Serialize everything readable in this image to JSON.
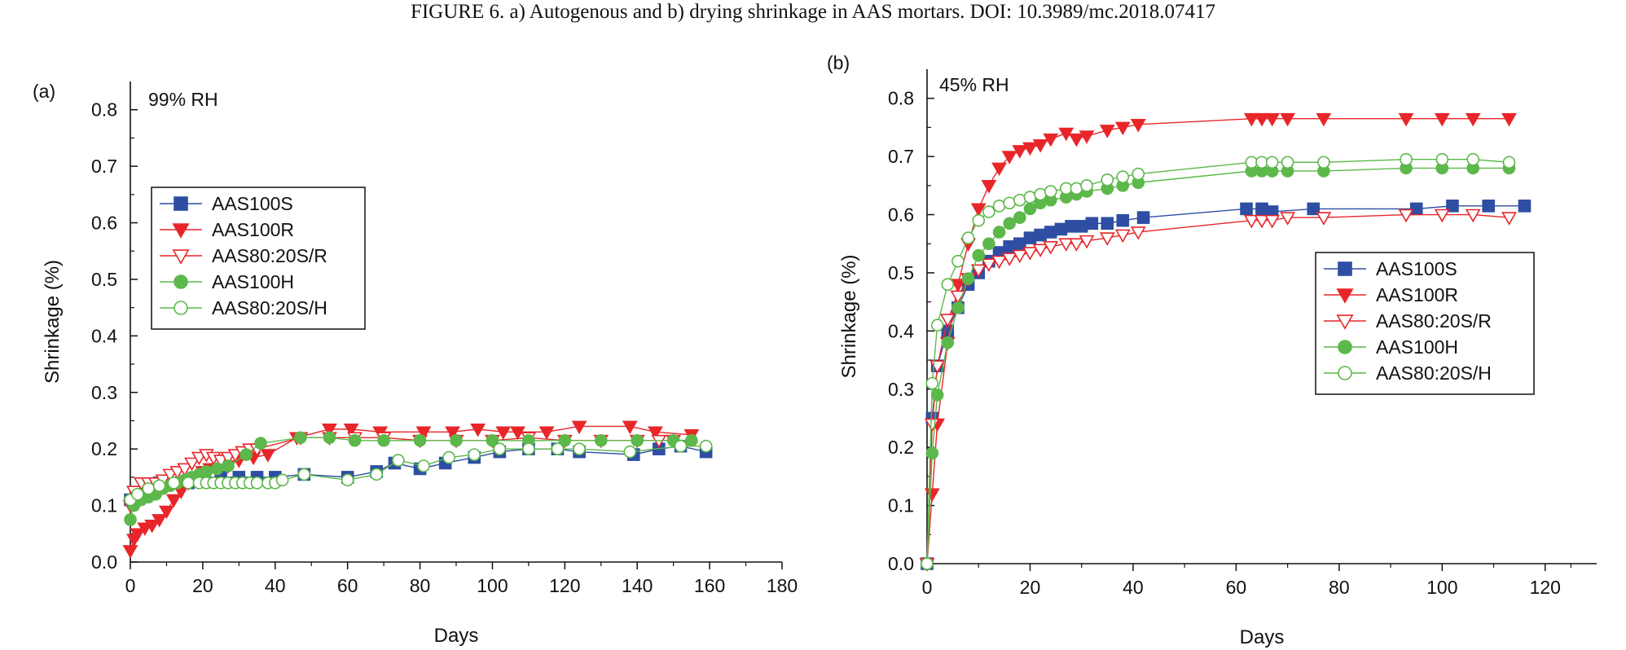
{
  "figure": {
    "caption": "FIGURE 6. a) Autogenous and b) drying shrinkage in AAS mortars. DOI: 10.3989/mc.2018.07417"
  },
  "colors": {
    "AAS100S": "#2e4ea3",
    "AAS100R": "#e8262a",
    "AAS80:20S/R": "#e8262a",
    "AAS100H": "#5cb84a",
    "AAS80:20S/H": "#5cb84a"
  },
  "chart_data": [
    {
      "type": "line",
      "panel_label": "(a)",
      "annotation": "99% RH",
      "xlabel": "Days",
      "ylabel": "Shrinkage (%)",
      "xlim": [
        0,
        180
      ],
      "ylim": [
        0,
        0.85
      ],
      "xticks": [
        "0",
        "20",
        "40",
        "60",
        "80",
        "100",
        "120",
        "140",
        "160",
        "180"
      ],
      "yticks": [
        "0.0",
        "0.1",
        "0.2",
        "0.3",
        "0.4",
        "0.5",
        "0.6",
        "0.7",
        "0.8"
      ],
      "legend_position": "upper-left",
      "series": [
        {
          "name": "AAS100S",
          "marker": "square",
          "filled": true,
          "x": [
            0,
            2,
            5,
            8,
            12,
            16,
            20,
            25,
            30,
            35,
            40,
            48,
            60,
            68,
            73,
            80,
            87,
            95,
            102,
            110,
            118,
            124,
            139,
            146,
            152,
            159
          ],
          "y": [
            0.11,
            0.12,
            0.13,
            0.14,
            0.14,
            0.14,
            0.15,
            0.15,
            0.15,
            0.15,
            0.15,
            0.155,
            0.15,
            0.16,
            0.175,
            0.165,
            0.175,
            0.185,
            0.195,
            0.2,
            0.2,
            0.195,
            0.19,
            0.2,
            0.205,
            0.195
          ]
        },
        {
          "name": "AAS100R",
          "marker": "triangle-down",
          "filled": true,
          "x": [
            0,
            1,
            2,
            4,
            6,
            8,
            10,
            12,
            14,
            16,
            18,
            20,
            22,
            24,
            27,
            30,
            34,
            38,
            46,
            55,
            61,
            69,
            81,
            89,
            96,
            103,
            107,
            115,
            124,
            138,
            145,
            155
          ],
          "y": [
            0.02,
            0.04,
            0.05,
            0.06,
            0.065,
            0.075,
            0.09,
            0.11,
            0.125,
            0.14,
            0.15,
            0.16,
            0.165,
            0.165,
            0.17,
            0.18,
            0.185,
            0.19,
            0.22,
            0.235,
            0.235,
            0.23,
            0.23,
            0.23,
            0.235,
            0.23,
            0.23,
            0.23,
            0.24,
            0.24,
            0.23,
            0.225
          ]
        },
        {
          "name": "AAS80:20S/R",
          "marker": "triangle-down",
          "filled": false,
          "x": [
            0,
            1,
            3,
            5,
            7,
            9,
            11,
            13,
            15,
            17,
            19,
            21,
            23,
            25,
            27,
            29,
            31,
            33,
            35,
            47,
            55,
            62,
            70,
            80,
            90,
            100,
            110,
            120,
            130,
            140,
            146,
            150
          ],
          "y": [
            0.1,
            0.125,
            0.14,
            0.14,
            0.14,
            0.145,
            0.155,
            0.16,
            0.165,
            0.175,
            0.185,
            0.19,
            0.185,
            0.18,
            0.185,
            0.19,
            0.195,
            0.2,
            0.2,
            0.22,
            0.22,
            0.22,
            0.22,
            0.215,
            0.215,
            0.215,
            0.22,
            0.215,
            0.215,
            0.215,
            0.215,
            0.215
          ]
        },
        {
          "name": "AAS100H",
          "marker": "circle",
          "filled": true,
          "x": [
            0,
            1,
            3,
            5,
            7,
            9,
            11,
            13,
            15,
            17,
            19,
            21,
            24,
            27,
            32,
            36,
            47,
            55,
            62,
            70,
            80,
            90,
            100,
            110,
            120,
            130,
            140,
            150,
            155
          ],
          "y": [
            0.075,
            0.1,
            0.11,
            0.115,
            0.12,
            0.13,
            0.135,
            0.14,
            0.145,
            0.15,
            0.155,
            0.16,
            0.165,
            0.17,
            0.19,
            0.21,
            0.22,
            0.22,
            0.215,
            0.215,
            0.215,
            0.215,
            0.215,
            0.215,
            0.215,
            0.215,
            0.215,
            0.215,
            0.215
          ]
        },
        {
          "name": "AAS80:20S/H",
          "marker": "circle",
          "filled": false,
          "x": [
            0,
            2,
            5,
            8,
            12,
            16,
            19,
            21,
            23,
            25,
            27,
            29,
            31,
            33,
            35,
            38,
            40,
            42,
            48,
            60,
            68,
            74,
            81,
            88,
            95,
            102,
            110,
            118,
            124,
            138,
            152,
            159
          ],
          "y": [
            0.11,
            0.12,
            0.13,
            0.135,
            0.14,
            0.14,
            0.14,
            0.14,
            0.14,
            0.14,
            0.14,
            0.14,
            0.14,
            0.14,
            0.14,
            0.14,
            0.14,
            0.145,
            0.155,
            0.145,
            0.155,
            0.18,
            0.17,
            0.185,
            0.19,
            0.2,
            0.2,
            0.2,
            0.2,
            0.195,
            0.205,
            0.205
          ]
        }
      ]
    },
    {
      "type": "line",
      "panel_label": "(b)",
      "annotation": "45% RH",
      "xlabel": "Days",
      "ylabel": "Shrinkage (%)",
      "xlim": [
        0,
        130
      ],
      "ylim": [
        0,
        0.85
      ],
      "xticks": [
        "0",
        "20",
        "40",
        "60",
        "80",
        "100",
        "120"
      ],
      "yticks": [
        "0.0",
        "0.1",
        "0.2",
        "0.3",
        "0.4",
        "0.5",
        "0.6",
        "0.7",
        "0.8"
      ],
      "legend_position": "center-right",
      "series": [
        {
          "name": "AAS100S",
          "marker": "square",
          "filled": true,
          "x": [
            0,
            1,
            2,
            4,
            6,
            8,
            10,
            12,
            14,
            16,
            18,
            20,
            22,
            24,
            26,
            28,
            30,
            32,
            35,
            38,
            42,
            62,
            65,
            67,
            75,
            95,
            102,
            109,
            116
          ],
          "y": [
            0.0,
            0.25,
            0.34,
            0.4,
            0.44,
            0.48,
            0.5,
            0.52,
            0.535,
            0.545,
            0.55,
            0.56,
            0.565,
            0.57,
            0.575,
            0.58,
            0.58,
            0.585,
            0.585,
            0.59,
            0.595,
            0.61,
            0.61,
            0.605,
            0.61,
            0.61,
            0.615,
            0.615,
            0.615
          ]
        },
        {
          "name": "AAS100R",
          "marker": "triangle-down",
          "filled": true,
          "x": [
            0,
            1,
            2,
            4,
            6,
            8,
            10,
            12,
            14,
            16,
            18,
            20,
            22,
            24,
            27,
            29,
            31,
            35,
            38,
            41,
            63,
            65,
            67,
            70,
            77,
            93,
            100,
            106,
            113
          ],
          "y": [
            0.0,
            0.12,
            0.24,
            0.38,
            0.48,
            0.55,
            0.61,
            0.65,
            0.68,
            0.7,
            0.71,
            0.715,
            0.72,
            0.73,
            0.74,
            0.73,
            0.735,
            0.745,
            0.75,
            0.755,
            0.765,
            0.765,
            0.765,
            0.765,
            0.765,
            0.765,
            0.765,
            0.765,
            0.765
          ]
        },
        {
          "name": "AAS80:20S/R",
          "marker": "triangle-down",
          "filled": false,
          "x": [
            0,
            1,
            2,
            4,
            6,
            8,
            10,
            12,
            14,
            16,
            18,
            20,
            22,
            24,
            27,
            29,
            31,
            35,
            38,
            41,
            63,
            65,
            67,
            70,
            77,
            93,
            100,
            106,
            113
          ],
          "y": [
            0.0,
            0.24,
            0.34,
            0.42,
            0.46,
            0.49,
            0.505,
            0.515,
            0.52,
            0.525,
            0.53,
            0.535,
            0.54,
            0.545,
            0.55,
            0.55,
            0.555,
            0.56,
            0.565,
            0.57,
            0.59,
            0.59,
            0.59,
            0.595,
            0.595,
            0.6,
            0.6,
            0.6,
            0.595
          ]
        },
        {
          "name": "AAS100H",
          "marker": "circle",
          "filled": true,
          "x": [
            0,
            1,
            2,
            4,
            6,
            8,
            10,
            12,
            14,
            16,
            18,
            20,
            22,
            24,
            27,
            29,
            31,
            35,
            38,
            41,
            63,
            65,
            67,
            70,
            77,
            93,
            100,
            106,
            113
          ],
          "y": [
            0.0,
            0.19,
            0.29,
            0.38,
            0.44,
            0.49,
            0.53,
            0.55,
            0.57,
            0.585,
            0.595,
            0.61,
            0.62,
            0.625,
            0.63,
            0.635,
            0.64,
            0.645,
            0.65,
            0.655,
            0.675,
            0.675,
            0.675,
            0.675,
            0.675,
            0.68,
            0.68,
            0.68,
            0.68
          ]
        },
        {
          "name": "AAS80:20S/H",
          "marker": "circle",
          "filled": false,
          "x": [
            0,
            1,
            2,
            4,
            6,
            8,
            10,
            12,
            14,
            16,
            18,
            20,
            22,
            24,
            27,
            29,
            31,
            35,
            38,
            41,
            63,
            65,
            67,
            70,
            77,
            93,
            100,
            106,
            113
          ],
          "y": [
            0.0,
            0.31,
            0.41,
            0.48,
            0.52,
            0.56,
            0.59,
            0.605,
            0.615,
            0.62,
            0.625,
            0.63,
            0.635,
            0.64,
            0.645,
            0.645,
            0.65,
            0.66,
            0.665,
            0.67,
            0.69,
            0.69,
            0.69,
            0.69,
            0.69,
            0.695,
            0.695,
            0.695,
            0.69
          ]
        }
      ]
    }
  ]
}
